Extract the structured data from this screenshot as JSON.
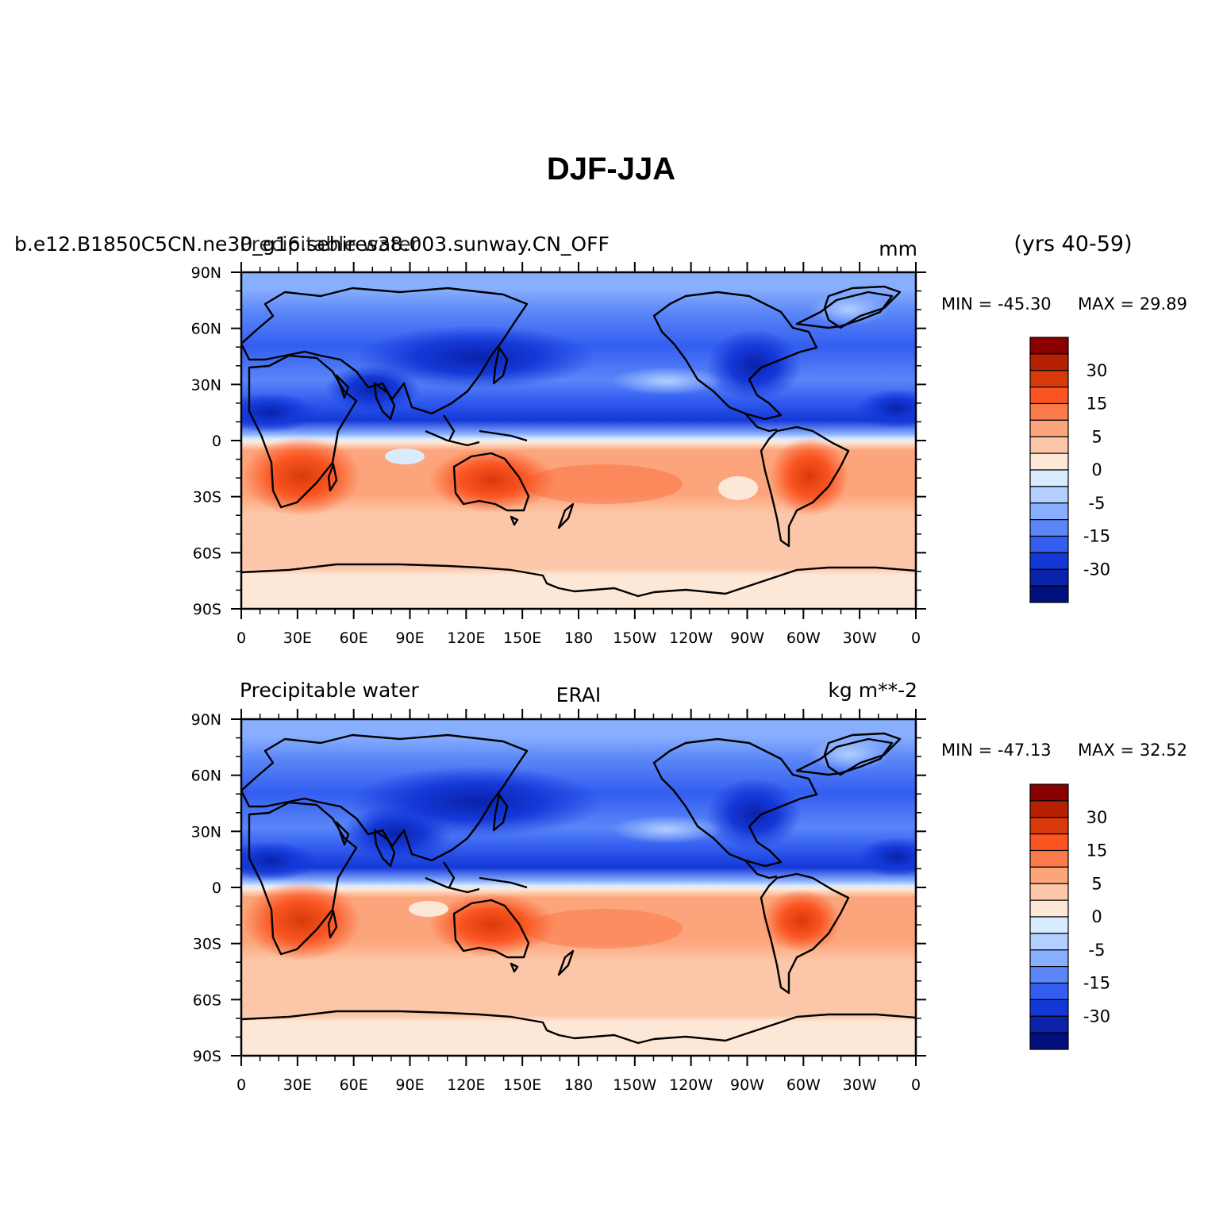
{
  "figure": {
    "title": "DJF-JJA"
  },
  "panels": [
    {
      "id": "model",
      "left_label": "b.e12.B1850C5CN.ne30_g16.sehires38.003.sunway.CN_OFF",
      "left_label_overlay": "Precipitable water",
      "center_label": "",
      "right_label": "mm",
      "years_label": "(yrs 40-59)",
      "min_label": "MIN = -45.30",
      "max_label": "MAX =  29.89"
    },
    {
      "id": "obs",
      "left_label": "Precipitable water",
      "center_label": "ERAI",
      "right_label": "kg m**-2",
      "min_label": "MIN = -47.13",
      "max_label": "MAX =  32.52"
    }
  ],
  "axes": {
    "lat_ticks": [
      "90N",
      "60N",
      "30N",
      "0",
      "30S",
      "60S",
      "90S"
    ],
    "lon_ticks": [
      "0",
      "30E",
      "60E",
      "90E",
      "120E",
      "150E",
      "180",
      "150W",
      "120W",
      "90W",
      "60W",
      "30W",
      "0"
    ]
  },
  "colorbar": {
    "colors": [
      "#8a0000",
      "#b52000",
      "#d83a0c",
      "#fa5521",
      "#fb7a4a",
      "#fca57c",
      "#fcc7a8",
      "#fde8d8",
      "#d8ebff",
      "#b2cfff",
      "#88aefe",
      "#5a86f8",
      "#335ef0",
      "#1438d8",
      "#0a22aa",
      "#02107e"
    ],
    "labels": [
      "30",
      "15",
      "5",
      "0",
      "-5",
      "-15",
      "-30"
    ],
    "label_boundary_index": [
      2,
      4,
      6,
      8,
      10,
      12,
      14
    ]
  },
  "map_data": {
    "variable": "Precipitable water",
    "season_difference": "DJF-JJA",
    "color_scale": "diverging blue-red"
  }
}
